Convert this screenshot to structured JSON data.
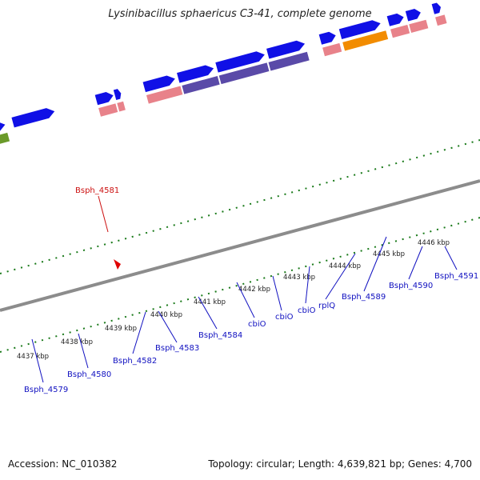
{
  "title": "Lysinibacillus sphaericus C3-41, complete genome",
  "accession": "Accession: NC_010382",
  "topology": "Topology: circular; Length: 4,639,821 bp; Genes: 4,700",
  "colors": {
    "backbone": "#8c8c8c",
    "dots": "#1a7a1a",
    "forward_gene": "#1010e6",
    "reverse_gene": "#1010e6",
    "rrna_pink": "#e8828a",
    "cds_purple": "#5a4aa8",
    "cds_orange": "#f28c00",
    "cds_olive": "#6a9a2a",
    "cds_yellow": "#efe08a",
    "label_blue": "#1010c0",
    "label_red": "#cc1010"
  },
  "icons": {
    "marker": "red-pointer-marker"
  },
  "scale_labels": [
    "4437 kbp",
    "4438 kbp",
    "4439 kbp",
    "4440 kbp",
    "4441 kbp",
    "4442 kbp",
    "4443 kbp",
    "4444 kbp",
    "4445 kbp",
    "4446 kbp"
  ],
  "gene_labels": {
    "Bsph_4579": "Bsph_4579",
    "Bsph_4580": "Bsph_4580",
    "Bsph_4582": "Bsph_4582",
    "Bsph_4583": "Bsph_4583",
    "Bsph_4584": "Bsph_4584",
    "cbiO_1": "cbiO",
    "cbiO_2": "cbiO",
    "cbiO_3": "cbiO",
    "rplQ": "rplQ",
    "Bsph_4589": "Bsph_4589",
    "Bsph_4590": "Bsph_4590",
    "Bsph_4591": "Bsph_4591",
    "Bsph_4581": "Bsph_4581"
  }
}
